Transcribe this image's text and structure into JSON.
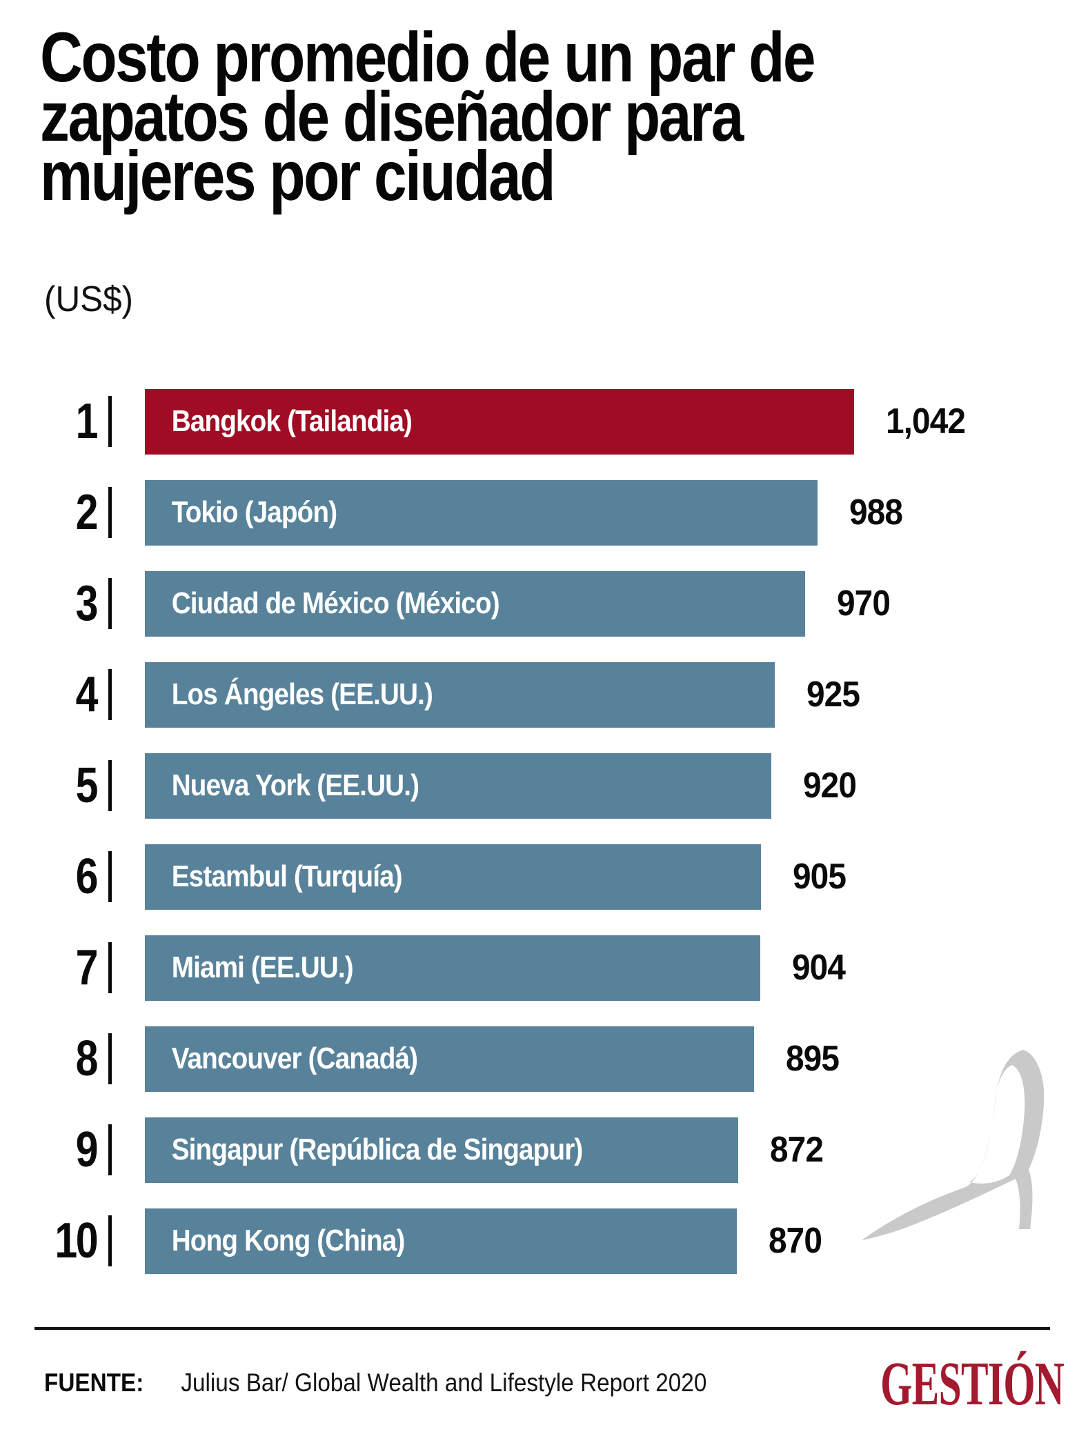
{
  "header": {
    "title_lines": [
      "Costo promedio de un par de",
      "zapatos de diseñador para",
      "mujeres por ciudad"
    ],
    "subtitle": "(US$)"
  },
  "chart_data": {
    "type": "bar",
    "orientation": "horizontal",
    "title": "Costo promedio de un par de zapatos de diseñador para mujeres por ciudad",
    "unit": "US$",
    "categories": [
      "Bangkok (Tailandia)",
      "Tokio (Japón)",
      "Ciudad de México (México)",
      "Los Ángeles (EE.UU.)",
      "Nueva York (EE.UU.)",
      "Estambul (Turquía)",
      "Miami (EE.UU.)",
      "Vancouver (Canadá)",
      "Singapur (República de Singapur)",
      "Hong Kong (China)"
    ],
    "values": [
      1042,
      988,
      970,
      925,
      920,
      905,
      904,
      895,
      872,
      870
    ],
    "value_labels": [
      "1,042",
      "988",
      "970",
      "925",
      "920",
      "905",
      "904",
      "895",
      "872",
      "870"
    ],
    "ranks": [
      "1",
      "2",
      "3",
      "4",
      "5",
      "6",
      "7",
      "8",
      "9",
      "10"
    ],
    "xlim": [
      0,
      1042
    ],
    "highlight_index": 0,
    "colors": {
      "bar_highlight": "#A00C24",
      "bar_default": "#57829A"
    },
    "legend": "none",
    "grid": "off"
  },
  "icons": {
    "shoe_icon_name": "high-heel-shoe-icon",
    "shoe_color": "#C9C9C9"
  },
  "footer": {
    "source_label": "FUENTE:",
    "source_text": "Julius Bar/ Global Wealth and Lifestyle Report 2020",
    "brand": "GESTIÓN",
    "brand_color": "#A31A2E"
  }
}
